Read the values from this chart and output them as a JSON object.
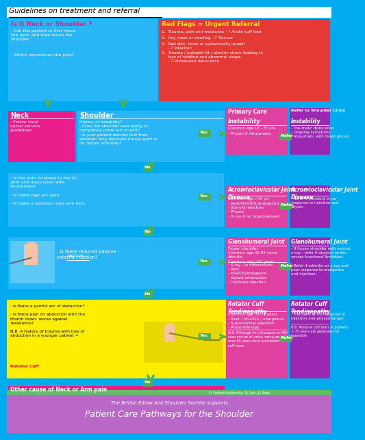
{
  "title": "Guidelines on treatment and referral",
  "bg_color": "#00aaee",
  "red_flags_title": "Red Flags = Urgent Referral",
  "red_flags_items": [
    "1.  Trauma, pain and weakness - ? Acute cuff tear",
    "2.  Any mass or swelling - ? Tumour",
    "3.  Red skin, fever or systemically unwell\n     - ? Infection",
    "4.  Trauma / epileptic fit / electric shock leading to\n     loss of rotation and abnormal shape\n     - ? Unreduced dislocation"
  ],
  "neck_or_shoulder_q": "Is it Neck or Shoulder ?",
  "neck_or_shoulder_text": "- Ask the patient to first move\nthe neck and then move the\nshoulder.\n\n\n\n- Which reproduces the pain?",
  "neck_label": "Neck",
  "neck_text": "- Follow local\nspinal service\nguidelines.",
  "shoulder_label": "Shoulder",
  "shoulder_text": "History of Instability?\n- Does the shoulder ever partly or\ncompletely come out of joint?\n- Is your patient worried that their\nshoulder may dislocate during sport or\non certain activities?",
  "primary_care_label": "Primary Care",
  "refer_label": "Refer to Shoulder Clinic",
  "instability_pc_title": "Instability",
  "instability_pc_sub": "Common age 10 - 35 yrs",
  "instability_pc_text": "- Physio if Atraumatic",
  "instability_ref_title": "Instability",
  "instability_ref_text": "- Traumatic dislocation\n- Ongoing symptoms\n- Atraumatic with failed physio",
  "acjd_q": "- Is the pain localised to the AC\njoint and associated with\ntenderness?\n\n- Is there high arc pain.\n\n- Is there a positive cross arm test.",
  "acjd_pc_title": "Acromioclavicular Joint\nDisease",
  "acjd_pc_sub": "Common age >30 yrs",
  "acjd_pc_text": "- Rest/NSAIDS/analgesics\n- Steroid injection\n- Physio\n- X-ray if no improvement",
  "acjd_ref_title": "Acromioclavicular Joint\nDisease",
  "acjd_ref_text": "- Refer if transient or no\nresponse to injection and\nphysio.",
  "gh_q": "- Is there reduced passive\nexternal rotation?",
  "gh_pc_title": "Glenohumeral Joint",
  "gh_pc_sub1": "Frozen shoulder\nCommon age 35-65 years\nArthritis\nCommon age >65 years",
  "gh_pc_text": "- X-ray - to differentiate.\n- Rest.\n- NSAIDS/analgesics.\n- Patient information\n- Cortisone injection",
  "gh_ref_title": "Glenohumeral Joint",
  "gh_ref_text": "- If frozen shoulder with normal\nx-ray - refer if atypical and/or\nsevere functional limitation.\n\n- Refer if arthritis on x-ray and\npoor response to analgesics\nand injection.",
  "rct_q1": "- Is there a painful arc of abduction?\n\n- Is there pain on abduction with the\nthumb down, worse against\nresistance?\n\nN.B. A history of trauma with loss of\nabduction in a younger patient =",
  "rct_q1_link": "Rotator Cuff",
  "rct_pc_title": "Rotator Cuff\nTendinopathy",
  "rct_pc_sub": "Common age 35-75 years",
  "rct_pc_text": "- Rest / NSAIDS / analgesics\n- Subacromial injection\n- Physiotherapy",
  "rct_pc_nb": "N.B. Although an ultrasound or MRI\nscan can be of value, some people\nover 65 years have asymptomatic\ncuff tears.",
  "rct_ref_title": "Rotator Cuff\nTendinopathy",
  "rct_ref_text": "- Transient or no response to\ninjection and physiotherapy",
  "rct_ref_nb": "N.B. Massive cuff tears in patients\n> 75 years are generally not\nreparable.",
  "other_label": "Other cause of Neck or Arm pain",
  "footer_copyright": "© Oxford University: AJ Carr, JL Rees.",
  "footer_society": "The British Elbow and Shoulder Society supports",
  "footer_title": "Patient Care Pathways for the Shoulder",
  "color_blue": "#00aaee",
  "color_lightblue": "#29b6f6",
  "color_pink": "#f06292",
  "color_hotpink": "#e91e8c",
  "color_magenta": "#e040a0",
  "color_purple": "#9c27b0",
  "color_red": "#e53935",
  "color_yellow": "#ffee00",
  "color_green_arrow": "#4caf50",
  "color_white": "#ffffff",
  "color_footer_bg": "#ba68c8",
  "color_footer_green": "#66bb6a",
  "color_darkgreen": "#2e7d32"
}
